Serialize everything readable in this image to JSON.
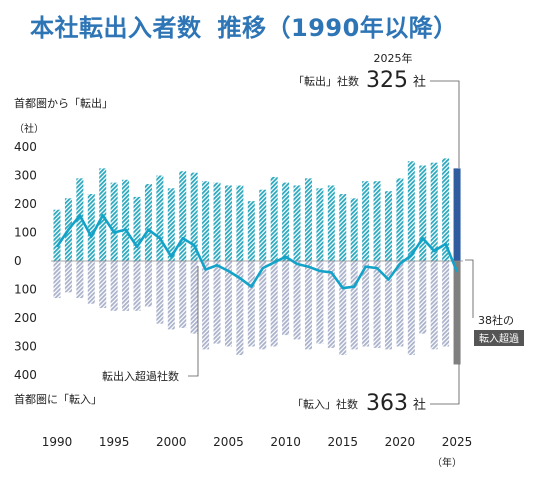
{
  "title": "本社転出入者数",
  "subtitle": "推移（1990年以降）",
  "chart_data": {
    "type": "bar",
    "years": [
      1990,
      1991,
      1992,
      1993,
      1994,
      1995,
      1996,
      1997,
      1998,
      1999,
      2000,
      2001,
      2002,
      2003,
      2004,
      2005,
      2006,
      2007,
      2008,
      2009,
      2010,
      2011,
      2012,
      2013,
      2014,
      2015,
      2016,
      2017,
      2018,
      2019,
      2020,
      2021,
      2022,
      2023,
      2024,
      2025
    ],
    "series": [
      {
        "name": "転出",
        "values": [
          180,
          220,
          290,
          235,
          325,
          275,
          285,
          225,
          270,
          300,
          255,
          315,
          310,
          280,
          275,
          265,
          265,
          210,
          250,
          295,
          275,
          265,
          290,
          255,
          265,
          235,
          220,
          280,
          280,
          245,
          290,
          350,
          335,
          345,
          360,
          325
        ]
      },
      {
        "name": "転入",
        "values": [
          130,
          110,
          130,
          150,
          165,
          175,
          175,
          175,
          160,
          220,
          240,
          235,
          255,
          310,
          290,
          300,
          330,
          300,
          310,
          300,
          260,
          275,
          310,
          290,
          305,
          330,
          310,
          300,
          305,
          310,
          300,
          330,
          255,
          310,
          300,
          363
        ]
      },
      {
        "name": "転出入超過社数",
        "values": [
          50,
          110,
          160,
          85,
          160,
          100,
          110,
          50,
          110,
          80,
          15,
          80,
          55,
          -30,
          -15,
          -35,
          -60,
          -90,
          -25,
          -5,
          15,
          -10,
          -20,
          -35,
          -40,
          -95,
          -90,
          -20,
          -25,
          -65,
          -10,
          20,
          80,
          35,
          60,
          -38
        ]
      }
    ],
    "x_ticks": [
      "1990",
      "1995",
      "2000",
      "2005",
      "2010",
      "2015",
      "2020",
      "2025"
    ],
    "x_unit": "（年）",
    "y_unit": "（社）",
    "y_ticks": [
      "400",
      "300",
      "200",
      "100",
      "0",
      "100",
      "200",
      "300",
      "400"
    ],
    "ylim": [
      -400,
      400
    ],
    "label_top": "首都圏から「転出」",
    "label_bottom": "首都圏に「転入」",
    "line_label": "転出入超過社数",
    "annotation_out": {
      "year": "2025年",
      "label": "「転出」社数",
      "value": "325",
      "unit": "社"
    },
    "annotation_in": {
      "label": "「転入」社数",
      "value": "363",
      "unit": "社"
    },
    "net_annotation": {
      "line1": "38社の",
      "line2": "転入超過"
    },
    "colors": {
      "out_stripe": "#2BA8BE",
      "in_stripe": "#AAB2CB",
      "line": "#13A3C9",
      "bar_2025_out": "#2E5C9E",
      "bar_2025_in": "#7F7F7F",
      "title": "#2E75B6"
    }
  }
}
